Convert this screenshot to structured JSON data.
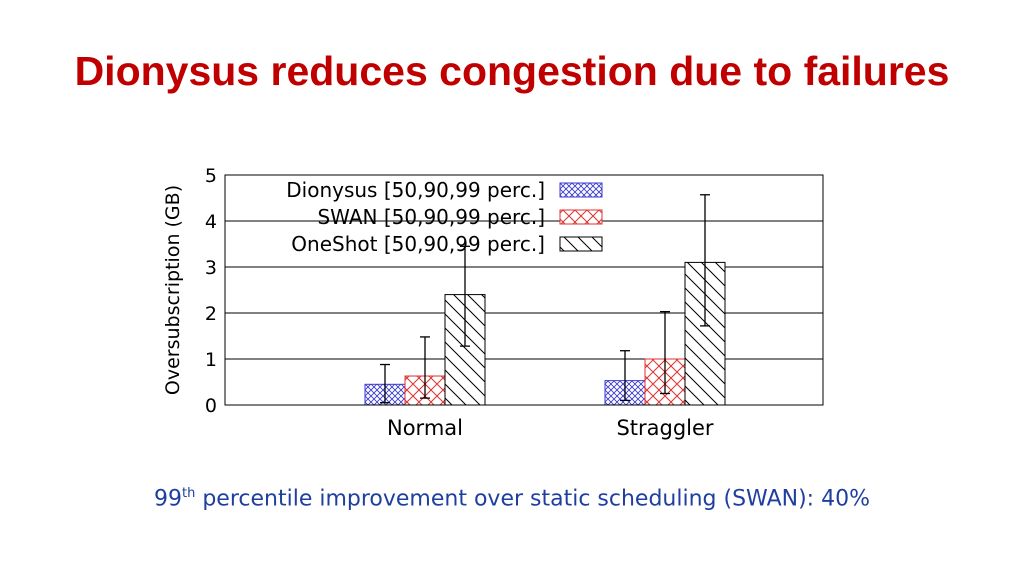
{
  "slide": {
    "title": "Dionysus reduces congestion due to failures",
    "caption_prefix": "99",
    "caption_sup": "th",
    "caption_rest": " percentile improvement over static scheduling (SWAN): 40%"
  },
  "chart_data": {
    "type": "bar",
    "title": "",
    "xlabel": "",
    "ylabel": "Oversubscription (GB)",
    "ylim": [
      0,
      5
    ],
    "yticks": [
      0,
      1,
      2,
      3,
      4,
      5
    ],
    "grid": true,
    "legend_position": "top-left",
    "categories": [
      "Normal",
      "Straggler"
    ],
    "series": [
      {
        "name": "Dionysus [50,90,99 perc.]",
        "pattern": "crosshatch",
        "color": "#3a3ad6",
        "values": [
          0.45,
          0.53
        ],
        "p90": [
          0.45,
          0.53
        ],
        "err_low": [
          0.05,
          0.1
        ],
        "err_high": [
          0.88,
          1.18
        ]
      },
      {
        "name": "SWAN [50,90,99 perc.]",
        "pattern": "diagonal-cross",
        "color": "#e03030",
        "values": [
          0.63,
          1.0
        ],
        "err_low": [
          0.15,
          0.25
        ],
        "err_high": [
          1.48,
          2.03
        ]
      },
      {
        "name": "OneShot [50,90,99 perc.]",
        "pattern": "diagonal",
        "color": "#000000",
        "values": [
          2.4,
          3.1
        ],
        "err_low": [
          1.28,
          1.72
        ],
        "err_high": [
          3.45,
          4.57
        ]
      }
    ]
  }
}
